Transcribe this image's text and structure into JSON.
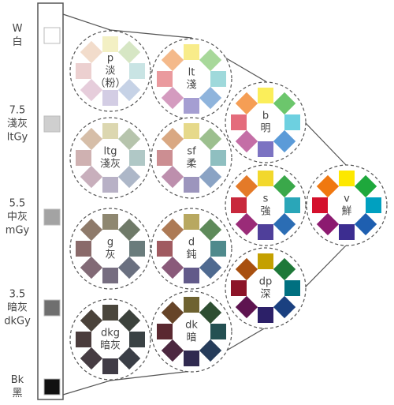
{
  "gray_scale": [
    {
      "lines": [
        "W",
        "白"
      ],
      "color": "#ffffff"
    },
    {
      "lines": [
        "7.5",
        "淺灰",
        "ltGy"
      ],
      "color": "#cfcfcf"
    },
    {
      "lines": [
        "5.5",
        "中灰",
        "mGy"
      ],
      "color": "#a3a3a3"
    },
    {
      "lines": [
        "3.5",
        "暗灰",
        "dkGy"
      ],
      "color": "#6f6f6f"
    },
    {
      "lines": [
        "Bk",
        "黑"
      ],
      "color": "#111111"
    }
  ],
  "tones": [
    {
      "lines": [
        "p",
        "淡",
        "（粉）"
      ],
      "colors": [
        "#f3f0c4",
        "#d6e6c4",
        "#c9e4e4",
        "#c6d2e6",
        "#d3cde4",
        "#e6cddb",
        "#ecd0d0",
        "#f2dccb"
      ]
    },
    {
      "lines": [
        "lt",
        "淺"
      ],
      "colors": [
        "#f8ec8a",
        "#a8d89a",
        "#9fd9db",
        "#8fb4dc",
        "#a59ed2",
        "#d49bbf",
        "#ea9a9e",
        "#f4b98a"
      ]
    },
    {
      "lines": [
        "b",
        "明"
      ],
      "colors": [
        "#fbee5a",
        "#6cc66c",
        "#6dd0e0",
        "#5b9bd8",
        "#7c73c2",
        "#c46ea6",
        "#e46c7c",
        "#f59e55"
      ]
    },
    {
      "lines": [
        "ltg",
        "淺灰"
      ],
      "colors": [
        "#dcd7b0",
        "#b6c4ac",
        "#b0c8c6",
        "#adb7c8",
        "#b8b1c6",
        "#c8afbc",
        "#cfb1b1",
        "#d6bea8"
      ]
    },
    {
      "lines": [
        "sf",
        "柔"
      ],
      "colors": [
        "#e6d98a",
        "#9cbf8e",
        "#8fbfc0",
        "#8aa3c4",
        "#9c95bd",
        "#bd8fad",
        "#cc8e92",
        "#d9a882"
      ]
    },
    {
      "lines": [
        "s",
        "強"
      ],
      "colors": [
        "#f2d82c",
        "#3aa84a",
        "#2aa6b8",
        "#2b6db4",
        "#4f3f9a",
        "#9a2b78",
        "#c8283c",
        "#e47a28"
      ]
    },
    {
      "lines": [
        "v",
        "鮮"
      ],
      "colors": [
        "#fde800",
        "#1ea83c",
        "#00a0c0",
        "#1e5fb0",
        "#3c2d90",
        "#8c1a70",
        "#d4102c",
        "#f07810"
      ]
    },
    {
      "lines": [
        "g",
        "灰"
      ],
      "colors": [
        "#8e8770",
        "#6f7a68",
        "#6a7c7c",
        "#6a7080",
        "#766d80",
        "#826a76",
        "#8a6a6a",
        "#8e7a6a"
      ]
    },
    {
      "lines": [
        "d",
        "鈍"
      ],
      "colors": [
        "#b8a860",
        "#5e8a5a",
        "#4f8a8c",
        "#4f6a90",
        "#625a8a",
        "#8a5a7a",
        "#a05a60",
        "#ad7a55"
      ]
    },
    {
      "lines": [
        "dp",
        "深"
      ],
      "colors": [
        "#c4a000",
        "#1e7838",
        "#007080",
        "#1a4080",
        "#2c2068",
        "#5e1450",
        "#8c1428",
        "#a85010"
      ]
    },
    {
      "lines": [
        "dkg",
        "暗灰"
      ],
      "colors": [
        "#4a463c",
        "#3c423c",
        "#3a4244",
        "#3a3e46",
        "#403c46",
        "#463c42",
        "#4a3c3c",
        "#4a423a"
      ]
    },
    {
      "lines": [
        "dk",
        "暗"
      ],
      "colors": [
        "#6e6230",
        "#2e4e32",
        "#245052",
        "#263c5a",
        "#302a50",
        "#4c2840",
        "#5a2830",
        "#664428"
      ]
    }
  ]
}
